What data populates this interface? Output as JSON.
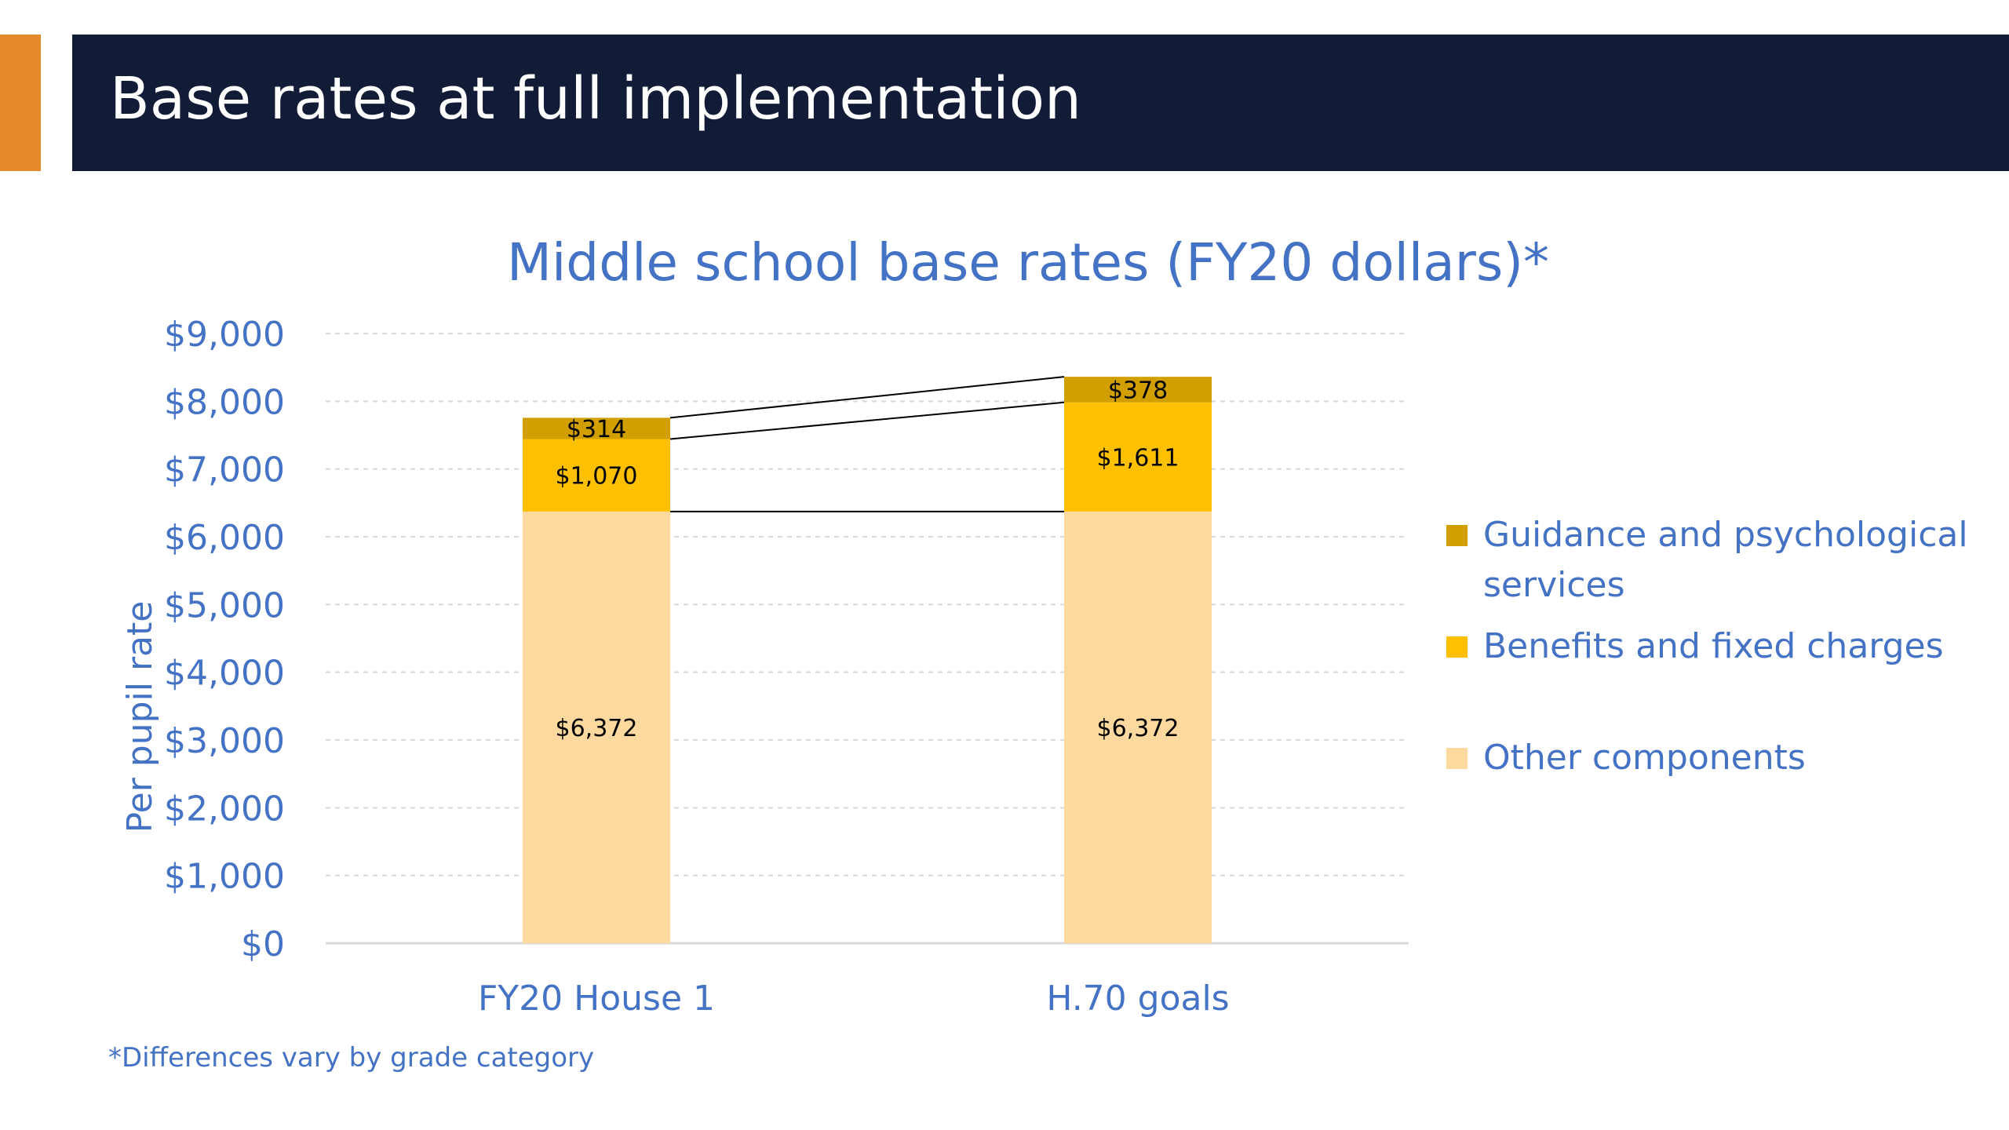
{
  "slide": {
    "title": "Base rates at full implementation",
    "footnote": "*Differences vary by grade category"
  },
  "colors": {
    "title_band": "#121c36",
    "accent": "#e5892a",
    "text_blue": "#4472c4",
    "other_components": "#fdd9a0",
    "benefits": "#fec000",
    "guidance": "#d29f02"
  },
  "chart_data": {
    "type": "bar",
    "stacked": true,
    "title": "Middle school base rates (FY20 dollars)*",
    "xlabel": "",
    "ylabel": "Per pupil rate",
    "ylim": [
      0,
      9000
    ],
    "yticks": [
      0,
      1000,
      2000,
      3000,
      4000,
      5000,
      6000,
      7000,
      8000,
      9000
    ],
    "ytick_labels": [
      "$0",
      "$1,000",
      "$2,000",
      "$3,000",
      "$4,000",
      "$5,000",
      "$6,000",
      "$7,000",
      "$8,000",
      "$9,000"
    ],
    "grid": true,
    "legend_position": "right",
    "categories": [
      "FY20 House 1",
      "H.70 goals"
    ],
    "series": [
      {
        "name": "Other components",
        "color": "#fdd9a0",
        "values": [
          6372,
          6372
        ],
        "labels": [
          "$6,372",
          "$6,372"
        ]
      },
      {
        "name": "Benefits and fixed charges",
        "color": "#fec000",
        "values": [
          1070,
          1611
        ],
        "labels": [
          "$1,070",
          "$1,611"
        ]
      },
      {
        "name": "Guidance and psychological services",
        "color": "#d29f02",
        "values": [
          314,
          378
        ],
        "labels": [
          "$314",
          "$378"
        ]
      }
    ],
    "legend": [
      {
        "name": "Guidance and psychological services",
        "color": "#d29f02"
      },
      {
        "name": "Benefits and fixed charges",
        "color": "#fec000"
      },
      {
        "name": "Other components",
        "color": "#fdd9a0"
      }
    ]
  }
}
